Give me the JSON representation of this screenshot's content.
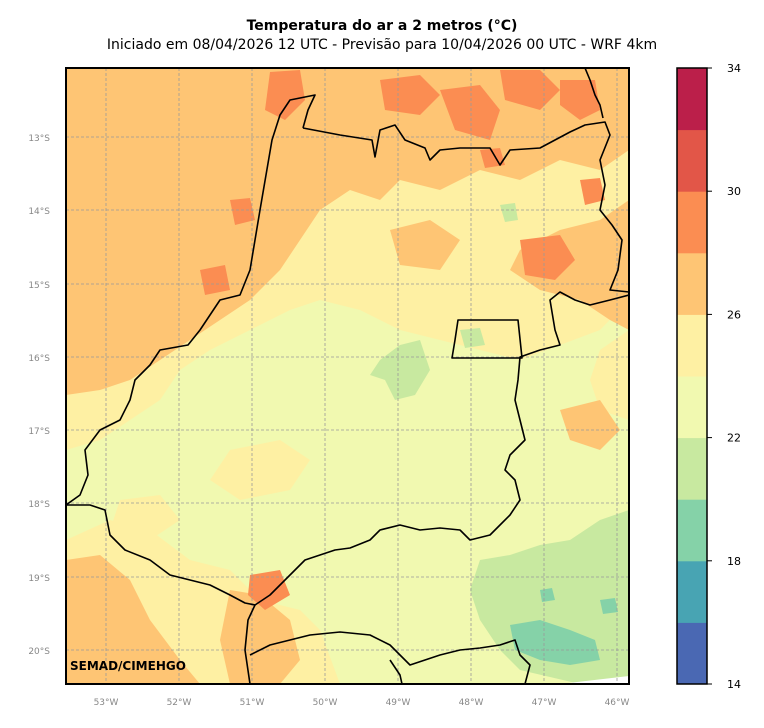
{
  "title": "Temperatura do ar a 2 metros (°C)",
  "subtitle": "Iniciado em 08/04/2026 12 UTC - Previsão para 10/04/2026 00 UTC - WRF 4km",
  "credit": "SEMAD/CIMEHGO",
  "map": {
    "lon_range": [
      -53.6,
      -45.85
    ],
    "lat_range": [
      -20.45,
      -12.0
    ],
    "lon_ticks": [
      {
        "value": -53,
        "label": "53°W"
      },
      {
        "value": -52,
        "label": "52°W"
      },
      {
        "value": -51,
        "label": "51°W"
      },
      {
        "value": -50,
        "label": "50°W"
      },
      {
        "value": -49,
        "label": "49°W"
      },
      {
        "value": -48,
        "label": "48°W"
      },
      {
        "value": -47,
        "label": "47°W"
      },
      {
        "value": -46,
        "label": "46°W"
      }
    ],
    "lat_ticks": [
      {
        "value": -13,
        "label": "13°S"
      },
      {
        "value": -14,
        "label": "14°S"
      },
      {
        "value": -15,
        "label": "15°S"
      },
      {
        "value": -16,
        "label": "16°S"
      },
      {
        "value": -17,
        "label": "17°S"
      },
      {
        "value": -18,
        "label": "18°S"
      },
      {
        "value": -19,
        "label": "19°S"
      },
      {
        "value": -20,
        "label": "20°S"
      }
    ],
    "grid": true
  },
  "colorbar": {
    "min": 14,
    "max": 34,
    "step": 2,
    "colors": [
      "#4a68b3",
      "#48a4b3",
      "#85d2a8",
      "#c8e9a0",
      "#f1f9b0",
      "#fef0a3",
      "#fec574",
      "#fb8d52",
      "#e25648",
      "#bb1f4a"
    ],
    "tick_labels": [
      "14",
      "18",
      "22",
      "26",
      "30",
      "34"
    ]
  },
  "colors": {
    "t20_22": "#c8e9a0",
    "t22_24": "#f1f9b0",
    "t24_26": "#fef0a3",
    "t26_28": "#fec574",
    "t28_30": "#fb8d52",
    "t18_20": "#85d2a8",
    "border": "#000000"
  }
}
